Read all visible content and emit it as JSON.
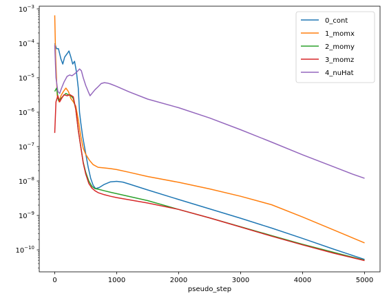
{
  "chart_data": {
    "type": "line",
    "title": "",
    "xlabel": "pseudo_step",
    "ylabel": "",
    "yscale": "log",
    "xlim": [
      -250,
      5250
    ],
    "ylim": [
      2.3e-11,
      0.0012
    ],
    "xticks": [
      0,
      1000,
      2000,
      3000,
      4000,
      5000
    ],
    "xtick_labels": [
      "0",
      "1000",
      "2000",
      "3000",
      "4000",
      "5000"
    ],
    "yticks": [
      1e-10,
      1e-09,
      1e-08,
      1e-07,
      1e-06,
      1e-05,
      0.0001,
      0.001
    ],
    "ytick_labels": [
      "10",
      "10",
      "10",
      "10",
      "10",
      "10",
      "10",
      "10"
    ],
    "ytick_exponents": [
      "−10",
      "−9",
      "−8",
      "−7",
      "−6",
      "−5",
      "−4",
      "−3"
    ],
    "grid": false,
    "legend_position": "top-right",
    "series": [
      {
        "name": "0_cont",
        "color": "#1f77b4",
        "points": [
          [
            0,
            0.0001
          ],
          [
            30,
            7e-05
          ],
          [
            60,
            7e-05
          ],
          [
            100,
            3.5e-05
          ],
          [
            130,
            2.5e-05
          ],
          [
            160,
            4e-05
          ],
          [
            200,
            5e-05
          ],
          [
            230,
            6e-05
          ],
          [
            260,
            4e-05
          ],
          [
            290,
            2.5e-05
          ],
          [
            320,
            3e-05
          ],
          [
            350,
            1.5e-05
          ],
          [
            380,
            5e-06
          ],
          [
            400,
            1e-06
          ],
          [
            420,
            5e-07
          ],
          [
            450,
            2e-07
          ],
          [
            480,
            1e-07
          ],
          [
            510,
            5e-08
          ],
          [
            540,
            2.5e-08
          ],
          [
            580,
            1.2e-08
          ],
          [
            620,
            7.5e-09
          ],
          [
            660,
            6e-09
          ],
          [
            720,
            6.5e-09
          ],
          [
            800,
            8e-09
          ],
          [
            900,
            9.5e-09
          ],
          [
            1000,
            9.8e-09
          ],
          [
            1100,
            9.3e-09
          ],
          [
            1200,
            8.2e-09
          ],
          [
            1500,
            5.5e-09
          ],
          [
            2000,
            2.9e-09
          ],
          [
            2500,
            1.55e-09
          ],
          [
            3000,
            8.3e-10
          ],
          [
            3500,
            4.3e-10
          ],
          [
            4000,
            2.15e-10
          ],
          [
            4500,
            1.05e-10
          ],
          [
            5000,
            5.3e-11
          ]
        ]
      },
      {
        "name": "1_momx",
        "color": "#ff7f0e",
        "points": [
          [
            0,
            0.00065
          ],
          [
            15,
            4e-05
          ],
          [
            40,
            3e-06
          ],
          [
            70,
            2e-06
          ],
          [
            100,
            3e-06
          ],
          [
            140,
            4e-06
          ],
          [
            180,
            5e-06
          ],
          [
            220,
            4e-06
          ],
          [
            260,
            2.5e-06
          ],
          [
            300,
            2e-06
          ],
          [
            340,
            1.5e-06
          ],
          [
            380,
            6e-07
          ],
          [
            420,
            2e-07
          ],
          [
            460,
            9e-08
          ],
          [
            500,
            6e-08
          ],
          [
            560,
            4e-08
          ],
          [
            620,
            3e-08
          ],
          [
            700,
            2.5e-08
          ],
          [
            800,
            2.4e-08
          ],
          [
            900,
            2.3e-08
          ],
          [
            1000,
            2.15e-08
          ],
          [
            1200,
            1.8e-08
          ],
          [
            1500,
            1.35e-08
          ],
          [
            2000,
            9.2e-09
          ],
          [
            2500,
            5.9e-09
          ],
          [
            3000,
            3.6e-09
          ],
          [
            3500,
            2.05e-09
          ],
          [
            4000,
            9e-10
          ],
          [
            4500,
            3.8e-10
          ],
          [
            5000,
            1.6e-10
          ]
        ]
      },
      {
        "name": "2_momy",
        "color": "#2ca02c",
        "points": [
          [
            0,
            4e-06
          ],
          [
            30,
            5e-06
          ],
          [
            60,
            2.2e-06
          ],
          [
            100,
            2.5e-06
          ],
          [
            140,
            3e-06
          ],
          [
            180,
            3.5e-06
          ],
          [
            220,
            3.2e-06
          ],
          [
            260,
            3e-06
          ],
          [
            300,
            2.5e-06
          ],
          [
            340,
            1.2e-06
          ],
          [
            380,
            3e-07
          ],
          [
            420,
            1e-07
          ],
          [
            460,
            3.5e-08
          ],
          [
            500,
            1.8e-08
          ],
          [
            550,
            1e-08
          ],
          [
            600,
            7e-09
          ],
          [
            650,
            6e-09
          ],
          [
            700,
            5.8e-09
          ],
          [
            800,
            5.2e-09
          ],
          [
            900,
            4.7e-09
          ],
          [
            1000,
            4.3e-09
          ],
          [
            1500,
            2.7e-09
          ],
          [
            2000,
            1.5e-09
          ],
          [
            2500,
            8.5e-10
          ],
          [
            3000,
            4.7e-10
          ],
          [
            3500,
            2.6e-10
          ],
          [
            4000,
            1.45e-10
          ],
          [
            4500,
            8.5e-11
          ],
          [
            5000,
            5e-11
          ]
        ]
      },
      {
        "name": "3_momz",
        "color": "#d62728",
        "points": [
          [
            0,
            2.5e-07
          ],
          [
            20,
            2e-06
          ],
          [
            50,
            3e-06
          ],
          [
            80,
            2e-06
          ],
          [
            110,
            2.5e-06
          ],
          [
            150,
            3.2e-06
          ],
          [
            200,
            3e-06
          ],
          [
            250,
            3.2e-06
          ],
          [
            300,
            2.8e-06
          ],
          [
            340,
            1.2e-06
          ],
          [
            380,
            3e-07
          ],
          [
            420,
            1e-07
          ],
          [
            460,
            3.3e-08
          ],
          [
            500,
            1.6e-08
          ],
          [
            550,
            8.5e-09
          ],
          [
            600,
            6.2e-09
          ],
          [
            650,
            5.2e-09
          ],
          [
            700,
            4.6e-09
          ],
          [
            800,
            4e-09
          ],
          [
            900,
            3.6e-09
          ],
          [
            1000,
            3.3e-09
          ],
          [
            1500,
            2.3e-09
          ],
          [
            2000,
            1.5e-09
          ],
          [
            2500,
            8.5e-10
          ],
          [
            3000,
            4.6e-10
          ],
          [
            3500,
            2.5e-10
          ],
          [
            4000,
            1.4e-10
          ],
          [
            4500,
            8e-11
          ],
          [
            5000,
            4.9e-11
          ]
        ]
      },
      {
        "name": "4_nuHat",
        "color": "#9467bd",
        "points": [
          [
            0,
            9e-05
          ],
          [
            20,
            1e-05
          ],
          [
            50,
            4e-06
          ],
          [
            80,
            3.5e-06
          ],
          [
            110,
            5e-06
          ],
          [
            150,
            7.5e-06
          ],
          [
            200,
            1.1e-05
          ],
          [
            240,
            1.2e-05
          ],
          [
            280,
            1.15e-05
          ],
          [
            320,
            1.3e-05
          ],
          [
            360,
            1.5e-05
          ],
          [
            400,
            1.8e-05
          ],
          [
            430,
            1.6e-05
          ],
          [
            460,
            1e-05
          ],
          [
            500,
            6e-06
          ],
          [
            540,
            4e-06
          ],
          [
            570,
            3e-06
          ],
          [
            600,
            3.5e-06
          ],
          [
            650,
            4.5e-06
          ],
          [
            700,
            5.5e-06
          ],
          [
            750,
            6.8e-06
          ],
          [
            800,
            7.2e-06
          ],
          [
            850,
            7e-06
          ],
          [
            900,
            6.6e-06
          ],
          [
            1000,
            5.6e-06
          ],
          [
            1200,
            3.9e-06
          ],
          [
            1500,
            2.4e-06
          ],
          [
            2000,
            1.35e-06
          ],
          [
            2500,
            6.8e-07
          ],
          [
            3000,
            3.1e-07
          ],
          [
            3500,
            1.35e-07
          ],
          [
            4000,
            5.8e-08
          ],
          [
            4500,
            2.6e-08
          ],
          [
            4800,
            1.6e-08
          ],
          [
            5000,
            1.2e-08
          ]
        ]
      }
    ]
  }
}
